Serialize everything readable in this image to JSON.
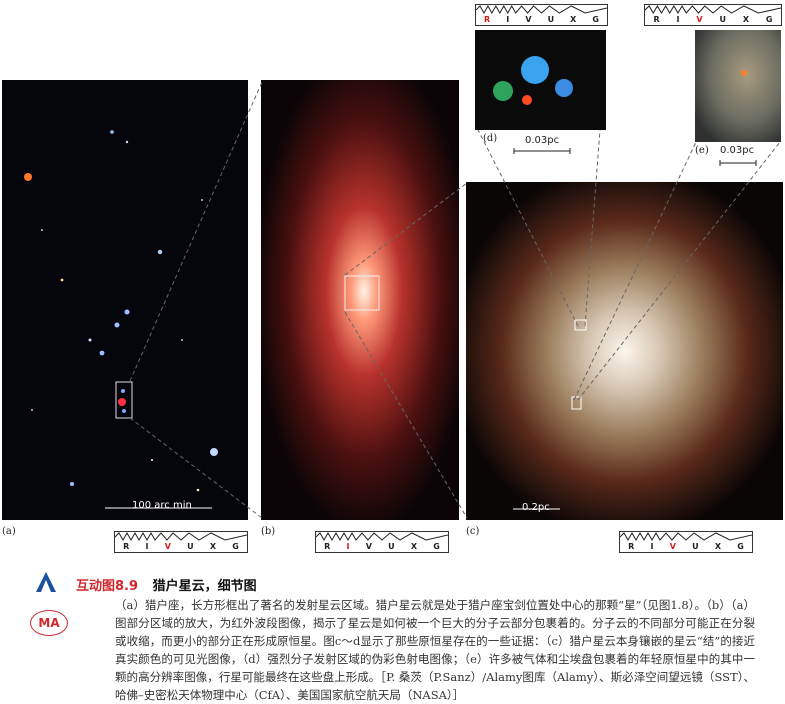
{
  "panels": {
    "a": {
      "label": "(a)",
      "scale": "100 arc min"
    },
    "b": {
      "label": "(b)"
    },
    "c": {
      "label": "(c)",
      "scale": "0.2pc"
    },
    "d": {
      "label": "(d)",
      "scale": "0.03pc"
    },
    "e": {
      "label": "(e)",
      "scale": "0.03pc"
    }
  },
  "spectrum_bands": [
    "R",
    "I",
    "V",
    "U",
    "X",
    "G"
  ],
  "spectrum_highlight": {
    "a": "V",
    "b": "I",
    "c": "V",
    "d": "R",
    "e": "V"
  },
  "caption": {
    "title_number": "互动图8.9",
    "title_name": "猎户星云，细节图",
    "body": "（a）猎户座，长方形框出了著名的发射星云区域。猎户星云就是处于猎户座宝剑位置处中心的那颗“星”（见图1.8）。（b）（a）图部分区域的放大，为红外波段图像，揭示了星云是如何被一个巨大的分子云部分包裹着的。分子云的不同部分可能正在分裂或收缩，而更小的部分正在形成原恒星。图c～d显示了那些原恒星存在的一些证据：（c）猎户星云本身镶嵌的星云“结”的接近真实颜色的可见光图像，（d）强烈分子发射区域的伪彩色射电图像；（e）许多被气体和尘埃盘包裹着的年轻原恒星中的其中一颗的高分辨率图像，行星可能最终在这些盘上形成。［P. 桑茨（P.Sanz）/Alamy图库（Alamy）、斯必泽空间望远镜（SST）、哈佛–史密松天体物理中心（CfA）、美国国家航空航天局（NASA）］"
  },
  "logo": {
    "text": "MA"
  }
}
